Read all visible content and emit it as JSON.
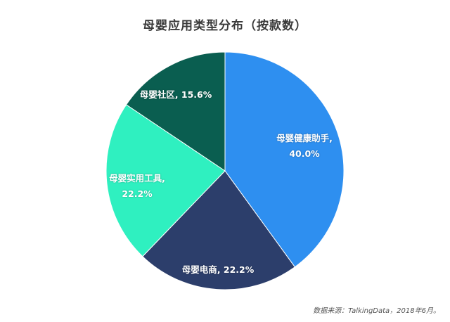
{
  "title": "母婴应用类型分布（按款数）",
  "source": "数据来源：TalkingData，2018年6月。",
  "chart_data": {
    "type": "pie",
    "title": "母婴应用类型分布（按款数）",
    "categories": [
      "母婴健康助手",
      "母婴电商",
      "母婴实用工具",
      "母婴社区"
    ],
    "values": [
      40.0,
      22.2,
      22.2,
      15.6
    ],
    "unit": "%",
    "colors": [
      "#2e8ff0",
      "#2c3e6b",
      "#2ff0c0",
      "#0a5e50"
    ],
    "start_angle": "12 o'clock",
    "direction": "clockwise",
    "legend": "none (labels inside slices)",
    "labels": [
      {
        "line1": "母婴健康助手,",
        "line2": "40.0%"
      },
      {
        "line1": "母婴电商, 22.2%",
        "line2": ""
      },
      {
        "line1": "母婴实用工具,",
        "line2": "22.2%"
      },
      {
        "line1": "母婴社区, 15.6%",
        "line2": ""
      }
    ]
  }
}
